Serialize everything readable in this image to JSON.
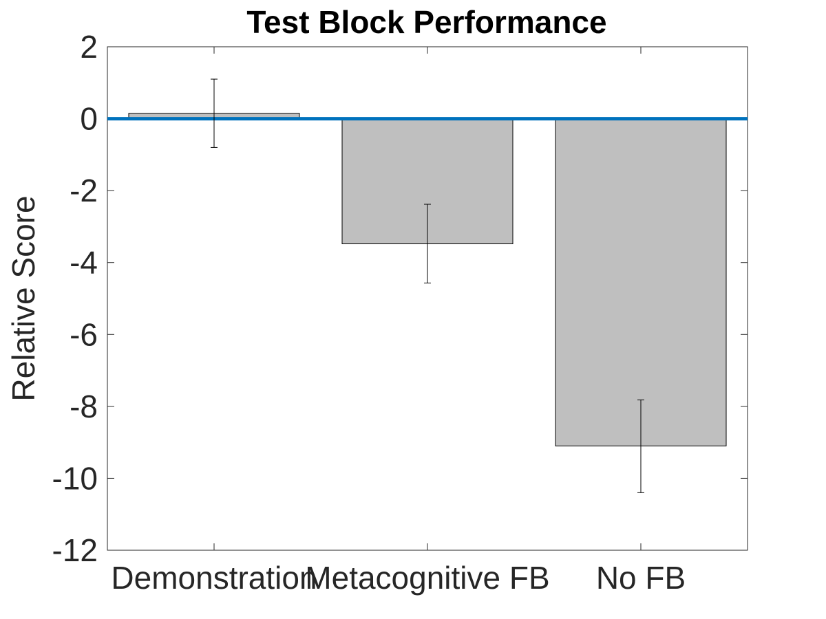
{
  "chart_data": {
    "type": "bar",
    "title": "Test Block Performance",
    "xlabel": "",
    "ylabel": "Relative Score",
    "categories": [
      "Demonstration",
      "Metacognitive FB",
      "No FB"
    ],
    "values": [
      0.15,
      -3.48,
      -9.1
    ],
    "error_low": [
      -0.8,
      -4.57,
      -10.4
    ],
    "error_high": [
      1.1,
      -2.38,
      -7.82
    ],
    "ylim": [
      -12,
      2
    ],
    "yticks": [
      2,
      0,
      -2,
      -4,
      -6,
      -8,
      -10,
      -12
    ],
    "ytick_labels": [
      "2",
      "0",
      "-2",
      "-4",
      "-6",
      "-8",
      "-10",
      "-12"
    ],
    "reference_line": {
      "y": 0,
      "x_range": [
        0.5,
        3.5
      ]
    },
    "grid": false,
    "legend": "none",
    "colors": {
      "bar_fill": "#bfbfbf",
      "bar_edge": "#000000",
      "reference_line": "#0072bd",
      "axis": "#262626",
      "error_bar": "#000000"
    }
  }
}
